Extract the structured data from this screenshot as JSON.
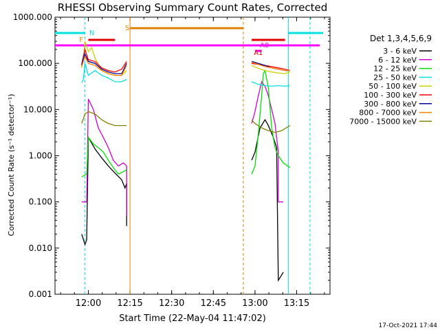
{
  "chart_data": {
    "type": "line",
    "title": "RHESSI Observing Summary Count Rates, Corrected",
    "xlabel": "Start Time (22-May-04 11:47:02)",
    "ylabel": "Corrected Count Rate (s⁻¹ detector⁻¹)",
    "yscale": "log",
    "ylim": [
      0.001,
      1000
    ],
    "xlim_minutes_after_start": [
      0,
      40
    ],
    "x_ticks": [
      "12:00",
      "12:15",
      "12:30",
      "12:45",
      "13:00",
      "13:15"
    ],
    "y_ticks": [
      "0.001",
      "0.010",
      "0.100",
      "1.000",
      "10.000",
      "100.000",
      "1000.000"
    ],
    "legend": {
      "title": "Det 1,3,4,5,6,9",
      "placement": "right",
      "entries": [
        "3 - 6 keV",
        "6 - 12 keV",
        "12 - 25 keV",
        "25 - 50 keV",
        "50 - 100 keV",
        "100 - 300 keV",
        "300 - 800 keV",
        "800 - 7000 keV",
        "7000 - 15000 keV"
      ]
    },
    "annotations": [
      "N",
      "F",
      "S",
      "A1",
      "A0"
    ],
    "timestamp": "17-Oct-2021 17:44",
    "series": [
      {
        "name": "3 - 6 keV",
        "color": "#000000",
        "segments": [
          [
            [
              11.96,
              0.02
            ],
            [
              11.98,
              0.012
            ],
            [
              11.99,
              0.015
            ],
            [
              12.0,
              2.5
            ],
            [
              12.04,
              1.4
            ],
            [
              12.08,
              0.9
            ],
            [
              12.12,
              0.6
            ],
            [
              12.16,
              0.42
            ],
            [
              12.2,
              0.3
            ],
            [
              12.22,
              0.2
            ],
            [
              12.23,
              0.25
            ],
            [
              12.23,
              0.03
            ]
          ],
          [
            [
              12.98,
              0.8
            ],
            [
              13.0,
              1.2
            ],
            [
              13.03,
              4.0
            ],
            [
              13.06,
              6.0
            ],
            [
              13.08,
              4.5
            ],
            [
              13.11,
              2.5
            ],
            [
              13.13,
              1.5
            ],
            [
              13.14,
              0.002
            ],
            [
              13.17,
              0.003
            ]
          ]
        ]
      },
      {
        "name": "6 - 12 keV",
        "color": "#d000d0",
        "segments": [
          [
            [
              11.96,
              0.1
            ],
            [
              11.99,
              0.1
            ],
            [
              12.0,
              17
            ],
            [
              12.03,
              10
            ],
            [
              12.06,
              4
            ],
            [
              12.09,
              2.5
            ],
            [
              12.12,
              1.5
            ],
            [
              12.15,
              0.8
            ],
            [
              12.18,
              0.6
            ],
            [
              12.21,
              0.7
            ],
            [
              12.23,
              0.6
            ],
            [
              12.23,
              0.05
            ]
          ],
          [
            [
              12.98,
              5
            ],
            [
              13.0,
              9
            ],
            [
              13.02,
              20
            ],
            [
              13.04,
              40
            ],
            [
              13.06,
              32
            ],
            [
              13.08,
              20
            ],
            [
              13.1,
              10
            ],
            [
              13.12,
              5
            ],
            [
              13.14,
              1.2
            ],
            [
              13.14,
              0.1
            ],
            [
              13.17,
              0.1
            ]
          ]
        ]
      },
      {
        "name": "12 - 25 keV",
        "color": "#00e000",
        "segments": [
          [
            [
              11.96,
              0.35
            ],
            [
              11.99,
              0.4
            ],
            [
              12.0,
              2.5
            ],
            [
              12.03,
              1.8
            ],
            [
              12.06,
              1.5
            ],
            [
              12.09,
              1.2
            ],
            [
              12.12,
              0.8
            ],
            [
              12.15,
              0.55
            ],
            [
              12.18,
              0.4
            ],
            [
              12.21,
              0.45
            ],
            [
              12.23,
              0.5
            ]
          ],
          [
            [
              12.98,
              0.4
            ],
            [
              13.0,
              0.6
            ],
            [
              13.02,
              3
            ],
            [
              13.04,
              20
            ],
            [
              13.05,
              60
            ],
            [
              13.06,
              70
            ],
            [
              13.08,
              30
            ],
            [
              13.1,
              4
            ],
            [
              13.12,
              1.5
            ],
            [
              13.14,
              1.0
            ],
            [
              13.17,
              0.7
            ],
            [
              13.21,
              0.55
            ]
          ]
        ]
      },
      {
        "name": "25 - 50 keV",
        "color": "#00e0e0",
        "segments": [
          [
            [
              11.96,
              38
            ],
            [
              11.97,
              45
            ],
            [
              11.98,
              100
            ],
            [
              12.0,
              55
            ],
            [
              12.04,
              70
            ],
            [
              12.08,
              55
            ],
            [
              12.12,
              48
            ],
            [
              12.16,
              40
            ],
            [
              12.2,
              40
            ],
            [
              12.23,
              45
            ]
          ],
          [
            [
              12.98,
              40
            ],
            [
              13.02,
              35
            ],
            [
              13.06,
              33
            ],
            [
              13.1,
              32
            ],
            [
              13.14,
              33
            ],
            [
              13.18,
              32
            ],
            [
              13.21,
              33
            ]
          ]
        ]
      },
      {
        "name": "50 - 100 keV",
        "color": "#d0d000",
        "segments": [
          [
            [
              11.96,
              80
            ],
            [
              11.97,
              120
            ],
            [
              11.98,
              300
            ],
            [
              12.0,
              180
            ],
            [
              12.02,
              220
            ],
            [
              12.04,
              130
            ],
            [
              12.08,
              70
            ],
            [
              12.12,
              60
            ],
            [
              12.16,
              55
            ],
            [
              12.2,
              55
            ],
            [
              12.23,
              70
            ]
          ],
          [
            [
              12.98,
              90
            ],
            [
              13.02,
              78
            ],
            [
              13.06,
              70
            ],
            [
              13.1,
              65
            ],
            [
              13.14,
              62
            ],
            [
              13.18,
              60
            ],
            [
              13.21,
              65
            ]
          ]
        ]
      },
      {
        "name": "100 - 300 keV",
        "color": "#ff0000",
        "segments": [
          [
            [
              11.96,
              95
            ],
            [
              11.97,
              140
            ],
            [
              11.98,
              200
            ],
            [
              12.0,
              120
            ],
            [
              12.04,
              110
            ],
            [
              12.08,
              80
            ],
            [
              12.12,
              70
            ],
            [
              12.16,
              65
            ],
            [
              12.2,
              75
            ],
            [
              12.23,
              110
            ]
          ],
          [
            [
              12.98,
              100
            ],
            [
              13.02,
              95
            ],
            [
              13.06,
              90
            ],
            [
              13.1,
              85
            ],
            [
              13.14,
              80
            ],
            [
              13.18,
              75
            ],
            [
              13.21,
              70
            ]
          ]
        ]
      },
      {
        "name": "300 - 800 keV",
        "color": "#000090",
        "segments": [
          [
            [
              11.96,
              90
            ],
            [
              11.97,
              130
            ],
            [
              11.98,
              160
            ],
            [
              12.0,
              110
            ],
            [
              12.04,
              100
            ],
            [
              12.08,
              75
            ],
            [
              12.12,
              65
            ],
            [
              12.16,
              60
            ],
            [
              12.2,
              60
            ],
            [
              12.23,
              100
            ]
          ],
          [
            [
              12.98,
              110
            ],
            [
              13.02,
              100
            ],
            [
              13.06,
              90
            ],
            [
              13.1,
              80
            ],
            [
              13.14,
              75
            ],
            [
              13.18,
              70
            ],
            [
              13.21,
              70
            ]
          ]
        ]
      },
      {
        "name": "800 - 7000 keV",
        "color": "#ff8000",
        "segments": [
          [
            [
              11.96,
              85
            ],
            [
              11.97,
              110
            ],
            [
              11.98,
              140
            ],
            [
              12.0,
              100
            ],
            [
              12.04,
              90
            ],
            [
              12.08,
              70
            ],
            [
              12.12,
              60
            ],
            [
              12.16,
              55
            ],
            [
              12.2,
              55
            ],
            [
              12.23,
              90
            ]
          ],
          [
            [
              12.98,
              105
            ],
            [
              13.02,
              95
            ],
            [
              13.06,
              85
            ],
            [
              13.1,
              80
            ],
            [
              13.14,
              75
            ],
            [
              13.18,
              70
            ],
            [
              13.21,
              70
            ]
          ]
        ]
      },
      {
        "name": "7000 - 15000 keV",
        "color": "#808000",
        "segments": [
          [
            [
              11.96,
              5
            ],
            [
              11.98,
              8
            ],
            [
              12.0,
              9
            ],
            [
              12.04,
              8
            ],
            [
              12.08,
              6
            ],
            [
              12.12,
              5
            ],
            [
              12.16,
              4.5
            ],
            [
              12.2,
              4.5
            ],
            [
              12.23,
              4.5
            ]
          ],
          [
            [
              12.98,
              6
            ],
            [
              13.0,
              5
            ],
            [
              13.04,
              4
            ],
            [
              13.08,
              3.5
            ],
            [
              13.12,
              3.2
            ],
            [
              13.16,
              3.5
            ],
            [
              13.21,
              4.5
            ]
          ]
        ]
      }
    ]
  }
}
